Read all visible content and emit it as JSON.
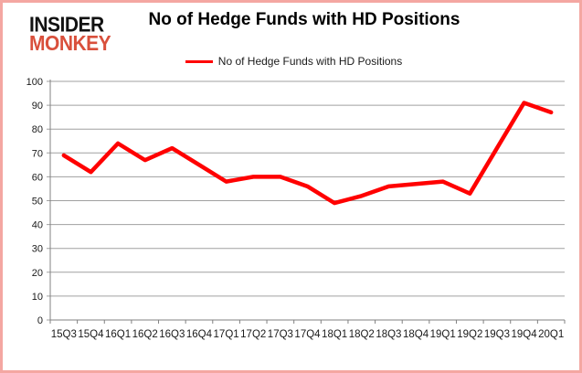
{
  "logo": {
    "line1": "INSIDER",
    "line2": "MONKEY"
  },
  "header": {
    "title": "No of Hedge Funds with HD Positions"
  },
  "legend": {
    "label": "No of Hedge Funds with HD Positions"
  },
  "colors": {
    "series_line": "#ff0000",
    "logo_red": "#d9503c",
    "frame_border": "#f4a7a2",
    "gridline": "#a0a0a0",
    "axis": "#808080",
    "tick_text": "#1a1a1a"
  },
  "chart_data": {
    "type": "line",
    "title": "No of Hedge Funds with HD Positions",
    "categories": [
      "15Q3",
      "15Q4",
      "16Q1",
      "16Q2",
      "16Q3",
      "16Q4",
      "17Q1",
      "17Q2",
      "17Q3",
      "17Q4",
      "18Q1",
      "18Q2",
      "18Q3",
      "18Q4",
      "19Q1",
      "19Q2",
      "19Q3",
      "19Q4",
      "20Q1"
    ],
    "series": [
      {
        "name": "No of Hedge Funds with HD Positions",
        "color": "#ff0000",
        "values": [
          69,
          62,
          74,
          67,
          72,
          65,
          58,
          60,
          60,
          56,
          49,
          52,
          56,
          57,
          58,
          53,
          72,
          91,
          87
        ]
      }
    ],
    "xlabel": "",
    "ylabel": "",
    "ylim": [
      0,
      100
    ],
    "yticks": [
      0,
      10,
      20,
      30,
      40,
      50,
      60,
      70,
      80,
      90,
      100
    ],
    "grid": true,
    "legend_position": "top-center"
  }
}
